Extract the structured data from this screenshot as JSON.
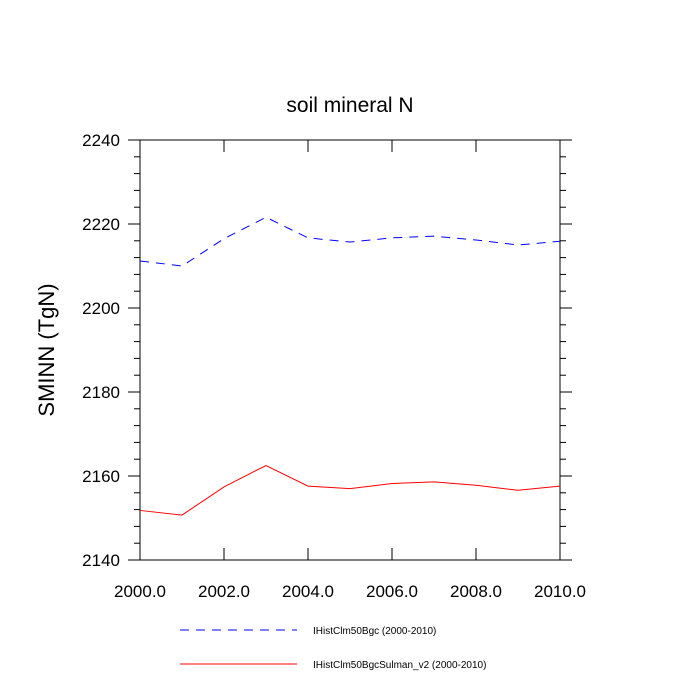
{
  "chart_data": {
    "type": "line",
    "title": "soil mineral N",
    "xlabel": "",
    "ylabel": "SMINN  (TgN)",
    "xlim": [
      2000,
      2010
    ],
    "ylim": [
      2140,
      2240
    ],
    "x": [
      2000,
      2001,
      2002,
      2003,
      2004,
      2005,
      2006,
      2007,
      2008,
      2009,
      2010
    ],
    "xticks": [
      2000,
      2002,
      2004,
      2006,
      2008,
      2010
    ],
    "xtick_labels": [
      "2000.0",
      "2002.0",
      "2004.0",
      "2006.0",
      "2008.0",
      "2010.0"
    ],
    "yticks": [
      2140,
      2160,
      2180,
      2200,
      2220,
      2240
    ],
    "ytick_labels": [
      "2140",
      "2160",
      "2180",
      "2200",
      "2220",
      "2240"
    ],
    "grid": false,
    "legend_position": "bottom",
    "series": [
      {
        "name": "IHistClm50Bgc (2000-2010)",
        "color": "#0000ff",
        "style": "dashed",
        "values": [
          2211.2,
          2210.0,
          2216.5,
          2221.6,
          2216.7,
          2215.7,
          2216.7,
          2217.1,
          2216.2,
          2215.0,
          2215.9
        ]
      },
      {
        "name": "IHistClm50BgcSulman_v2 (2000-2010)",
        "color": "#ff0000",
        "style": "solid",
        "values": [
          2151.8,
          2150.7,
          2157.4,
          2162.5,
          2157.6,
          2157.0,
          2158.2,
          2158.6,
          2157.8,
          2156.6,
          2157.6
        ]
      }
    ]
  }
}
